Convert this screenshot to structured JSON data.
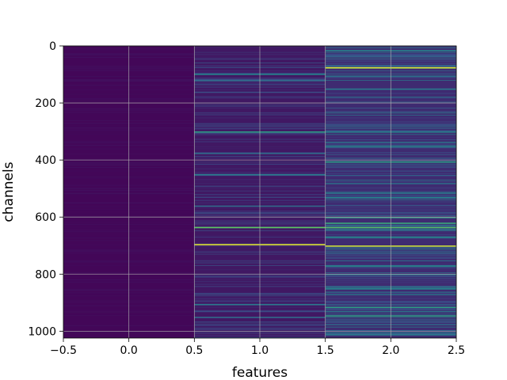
{
  "chart_data": {
    "type": "heatmap",
    "title": "",
    "xlabel": "features",
    "ylabel": "channels",
    "colormap": "viridis",
    "xlim": [
      -0.5,
      2.5
    ],
    "ylim": [
      1024,
      0
    ],
    "y_inverted": true,
    "grid": true,
    "x_ticks": [
      {
        "value": -0.5,
        "label": "−0.5"
      },
      {
        "value": 0.0,
        "label": "0.0"
      },
      {
        "value": 0.5,
        "label": "0.5"
      },
      {
        "value": 1.0,
        "label": "1.0"
      },
      {
        "value": 1.5,
        "label": "1.5"
      },
      {
        "value": 2.0,
        "label": "2.0"
      },
      {
        "value": 2.5,
        "label": "2.5"
      }
    ],
    "y_ticks": [
      {
        "value": 0,
        "label": "0"
      },
      {
        "value": 200,
        "label": "200"
      },
      {
        "value": 400,
        "label": "400"
      },
      {
        "value": 600,
        "label": "600"
      },
      {
        "value": 800,
        "label": "800"
      },
      {
        "value": 1000,
        "label": "1000"
      }
    ],
    "features": [
      0,
      1,
      2
    ],
    "channel_count": 1024,
    "columns": [
      {
        "feature": 0,
        "base_level": 0.02,
        "bright_channels": []
      },
      {
        "feature": 1,
        "base_level": 0.07,
        "bright_channels": [
          {
            "channel": 98,
            "value": 0.45
          },
          {
            "channel": 120,
            "value": 0.35
          },
          {
            "channel": 300,
            "value": 0.55
          },
          {
            "channel": 375,
            "value": 0.35
          },
          {
            "channel": 450,
            "value": 0.4
          },
          {
            "channel": 560,
            "value": 0.35
          },
          {
            "channel": 635,
            "value": 0.75
          },
          {
            "channel": 695,
            "value": 0.95
          },
          {
            "channel": 905,
            "value": 0.4
          },
          {
            "channel": 950,
            "value": 0.35
          }
        ]
      },
      {
        "feature": 2,
        "base_level": 0.13,
        "bright_channels": [
          {
            "channel": 15,
            "value": 0.45
          },
          {
            "channel": 75,
            "value": 0.95
          },
          {
            "channel": 150,
            "value": 0.4
          },
          {
            "channel": 300,
            "value": 0.45
          },
          {
            "channel": 350,
            "value": 0.45
          },
          {
            "channel": 405,
            "value": 0.55
          },
          {
            "channel": 530,
            "value": 0.45
          },
          {
            "channel": 600,
            "value": 0.55
          },
          {
            "channel": 620,
            "value": 0.6
          },
          {
            "channel": 635,
            "value": 0.7
          },
          {
            "channel": 670,
            "value": 0.45
          },
          {
            "channel": 700,
            "value": 0.92
          },
          {
            "channel": 770,
            "value": 0.45
          },
          {
            "channel": 800,
            "value": 0.4
          },
          {
            "channel": 850,
            "value": 0.45
          },
          {
            "channel": 915,
            "value": 0.55
          },
          {
            "channel": 945,
            "value": 0.55
          },
          {
            "channel": 1010,
            "value": 0.4
          }
        ]
      }
    ]
  }
}
